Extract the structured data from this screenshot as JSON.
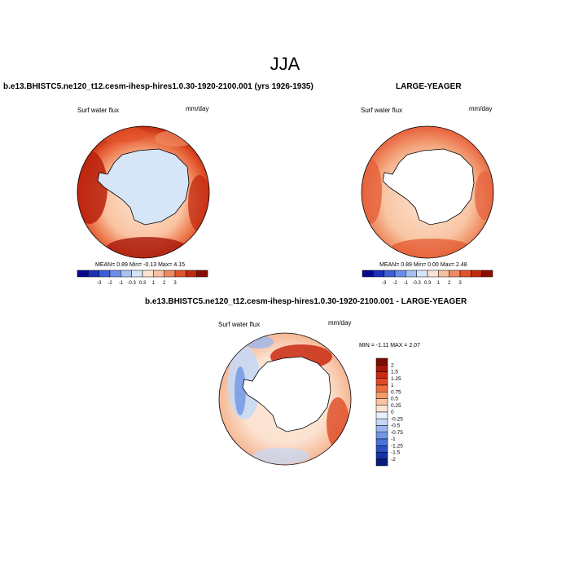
{
  "figure": {
    "title": "JJA",
    "panel_left": {
      "title": "b.e13.BHISTC5.ne120_t12.cesm-ihesp-hires1.0.30-1920-2100.001 (yrs 1926-1935)",
      "variable": "Surf water flux",
      "units": "mm/day",
      "stats": {
        "mean_label": "MEAN=",
        "mean": "0.89",
        "min_label": "Min=",
        "min": "-0.13",
        "max_label": "Max=",
        "max": "4.15"
      }
    },
    "panel_right": {
      "title": "LARGE-YEAGER",
      "variable": "Surf water flux",
      "units": "mm/day",
      "stats": {
        "mean_label": "MEAN=",
        "mean": "0.89",
        "min_label": "Min=",
        "min": "0.00",
        "max_label": "Max=",
        "max": "2.48"
      }
    },
    "panel_diff": {
      "title": "b.e13.BHISTC5.ne120_t12.cesm-ihesp-hires1.0.30-1920-2100.001 - LARGE-YEAGER",
      "variable": "Surf water flux",
      "units": "mm/day",
      "stats": "MIN = -1.11 MAX = 2.07"
    },
    "colorbar_horizontal": {
      "labels": [
        "-3",
        "-2",
        "-1",
        "-0.3",
        "0.3",
        "1",
        "2",
        "3"
      ],
      "colors": [
        "#08088e",
        "#1a2fb8",
        "#3a5fd6",
        "#6b8ee8",
        "#a7c0f2",
        "#d6e4f8",
        "#fbe3d2",
        "#f7c0a0",
        "#f08a60",
        "#e2542c",
        "#c22a10",
        "#8a0d05"
      ]
    },
    "colorbar_vertical": {
      "labels": [
        "2",
        "1.5",
        "1.25",
        "1",
        "0.75",
        "0.5",
        "0.25",
        "0",
        "-0.25",
        "-0.5",
        "-0.75",
        "-1",
        "-1.25",
        "-1.5",
        "-2"
      ],
      "colors": [
        "#7a0a04",
        "#a8160a",
        "#c92a12",
        "#df4a24",
        "#ee7040",
        "#f59a6a",
        "#fac4a2",
        "#fde4d4",
        "#e8f0fb",
        "#c6d8f5",
        "#9ab8ee",
        "#6f96e4",
        "#4874d8",
        "#2a50c4",
        "#1432a4",
        "#081a7a"
      ]
    },
    "colors": {
      "land": "#ffffff",
      "ice_shelf_left": "#d6e6f8",
      "coast": "#000000"
    }
  }
}
